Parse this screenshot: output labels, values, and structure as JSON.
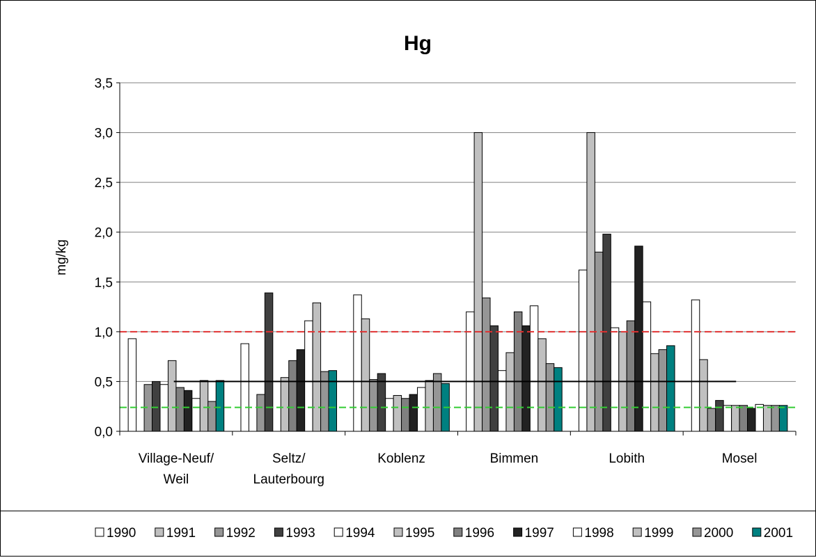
{
  "chart_data": {
    "type": "bar",
    "title": "Hg",
    "y_label": "mg/kg",
    "categories": [
      "Village-Neuf/\nWeil",
      "Seltz/\nLauterbourg",
      "Koblenz",
      "Bimmen",
      "Lobith",
      "Mosel"
    ],
    "series": [
      {
        "name": "1990",
        "color": "#ffffff",
        "values": [
          0.93,
          0.88,
          1.37,
          1.2,
          1.62,
          1.32
        ]
      },
      {
        "name": "1991",
        "color": "#c0c0c0",
        "values": [
          null,
          null,
          1.13,
          3.0,
          3.0,
          0.72
        ]
      },
      {
        "name": "1992",
        "color": "#969696",
        "values": [
          0.47,
          0.37,
          0.52,
          1.34,
          1.8,
          0.23
        ]
      },
      {
        "name": "1993",
        "color": "#404040",
        "values": [
          0.5,
          1.39,
          0.58,
          1.06,
          1.98,
          0.31
        ]
      },
      {
        "name": "1994",
        "color": "#ffffff",
        "values": [
          0.47,
          null,
          0.33,
          0.61,
          1.04,
          0.26
        ]
      },
      {
        "name": "1995",
        "color": "#c0c0c0",
        "values": [
          0.71,
          0.54,
          0.36,
          0.79,
          1.0,
          0.26
        ]
      },
      {
        "name": "1996",
        "color": "#808080",
        "values": [
          0.44,
          0.71,
          0.33,
          1.2,
          1.11,
          0.26
        ]
      },
      {
        "name": "1997",
        "color": "#222222",
        "values": [
          0.41,
          0.82,
          0.37,
          1.06,
          1.86,
          0.23
        ]
      },
      {
        "name": "1998",
        "color": "#ffffff",
        "values": [
          0.33,
          1.11,
          0.44,
          1.26,
          1.3,
          0.27
        ]
      },
      {
        "name": "1999",
        "color": "#c0c0c0",
        "values": [
          0.51,
          1.29,
          0.51,
          0.93,
          0.78,
          0.26
        ]
      },
      {
        "name": "2000",
        "color": "#969696",
        "values": [
          0.3,
          0.6,
          0.58,
          0.68,
          0.82,
          0.26
        ]
      },
      {
        "name": "2001",
        "color": "#008080",
        "values": [
          0.51,
          0.61,
          0.48,
          0.64,
          0.86,
          0.26
        ]
      }
    ],
    "reference_lines": [
      {
        "value": 1.0,
        "color": "#e03030",
        "style": "dashed"
      },
      {
        "value": 0.5,
        "color": "#000000",
        "style": "solid"
      },
      {
        "value": 0.24,
        "color": "#33cc33",
        "style": "dashed"
      }
    ],
    "ylim": [
      0,
      3.5
    ],
    "yticks": [
      {
        "value": 0,
        "label": "0,0"
      },
      {
        "value": 0.5,
        "label": "0,5"
      },
      {
        "value": 1.0,
        "label": "1,0"
      },
      {
        "value": 1.5,
        "label": "1,5"
      },
      {
        "value": 2.0,
        "label": "2,0"
      },
      {
        "value": 2.5,
        "label": "2,5"
      },
      {
        "value": 3.0,
        "label": "3,0"
      },
      {
        "value": 3.5,
        "label": "3,5"
      }
    ],
    "grid": true,
    "legend": "bottom"
  }
}
